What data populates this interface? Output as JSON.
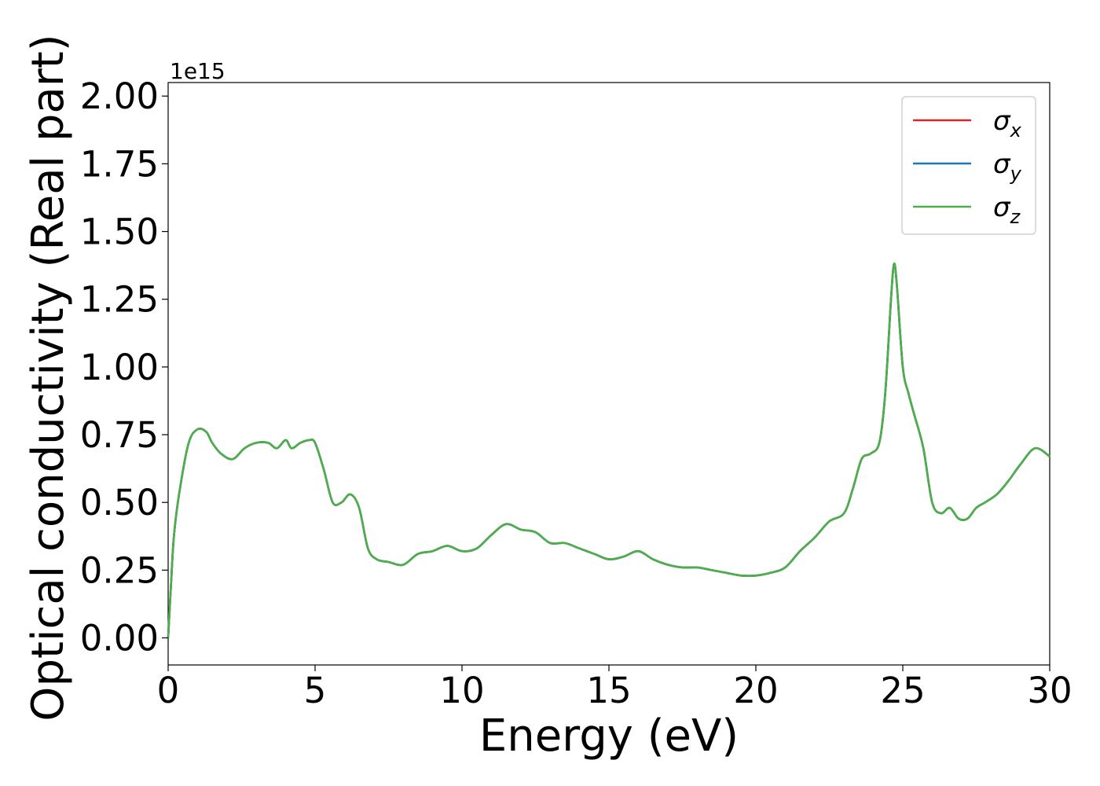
{
  "chart_data": {
    "type": "line",
    "xlabel": "Energy (eV)",
    "ylabel": "Optical conductivity (Real part)",
    "offset_text": "1e15",
    "xlim": [
      0,
      30
    ],
    "ylim": [
      -0.1,
      2.05
    ],
    "y_scale": 1000000000000000.0,
    "x_ticks": [
      0,
      5,
      10,
      15,
      20,
      25,
      30
    ],
    "x_tick_labels": [
      "0",
      "5",
      "10",
      "15",
      "20",
      "25",
      "30"
    ],
    "y_ticks": [
      0.0,
      0.25,
      0.5,
      0.75,
      1.0,
      1.25,
      1.5,
      1.75,
      2.0
    ],
    "y_tick_labels": [
      "0.00",
      "0.25",
      "0.50",
      "0.75",
      "1.00",
      "1.25",
      "1.50",
      "1.75",
      "2.00"
    ],
    "grid": false,
    "legend_position": "top-right",
    "x": [
      0.0,
      0.1,
      0.2,
      0.4,
      0.7,
      1.0,
      1.3,
      1.5,
      1.8,
      2.2,
      2.6,
      3.0,
      3.4,
      3.7,
      4.0,
      4.2,
      4.5,
      4.8,
      5.0,
      5.3,
      5.6,
      5.9,
      6.2,
      6.5,
      6.8,
      7.1,
      7.5,
      8.0,
      8.5,
      9.0,
      9.5,
      10.0,
      10.5,
      11.0,
      11.5,
      12.0,
      12.5,
      13.0,
      13.5,
      14.0,
      14.5,
      15.0,
      15.5,
      16.0,
      16.5,
      17.0,
      17.5,
      18.0,
      18.5,
      19.0,
      19.5,
      20.0,
      20.5,
      21.0,
      21.5,
      22.0,
      22.5,
      23.0,
      23.3,
      23.6,
      23.9,
      24.2,
      24.4,
      24.6,
      24.7,
      24.8,
      25.0,
      25.2,
      25.4,
      25.7,
      26.0,
      26.3,
      26.6,
      26.9,
      27.2,
      27.5,
      27.8,
      28.2,
      28.6,
      29.0,
      29.5,
      30.0
    ],
    "series": [
      {
        "name": "σx",
        "color": "#d62728",
        "values": [
          0.0,
          0.2,
          0.38,
          0.55,
          0.72,
          0.77,
          0.76,
          0.72,
          0.68,
          0.66,
          0.7,
          0.72,
          0.72,
          0.7,
          0.73,
          0.7,
          0.72,
          0.73,
          0.72,
          0.62,
          0.5,
          0.5,
          0.53,
          0.48,
          0.33,
          0.29,
          0.28,
          0.27,
          0.31,
          0.32,
          0.34,
          0.32,
          0.33,
          0.38,
          0.42,
          0.4,
          0.39,
          0.35,
          0.35,
          0.33,
          0.31,
          0.29,
          0.3,
          0.32,
          0.29,
          0.27,
          0.26,
          0.26,
          0.25,
          0.24,
          0.23,
          0.23,
          0.24,
          0.26,
          0.32,
          0.37,
          0.43,
          0.46,
          0.55,
          0.66,
          0.68,
          0.72,
          0.9,
          1.25,
          1.38,
          1.3,
          1.0,
          0.9,
          0.82,
          0.7,
          0.5,
          0.46,
          0.48,
          0.44,
          0.44,
          0.48,
          0.5,
          0.53,
          0.58,
          0.64,
          0.7,
          0.67
        ]
      },
      {
        "name": "σy",
        "color": "#1f77b4",
        "values": [
          0.0,
          0.2,
          0.38,
          0.55,
          0.72,
          0.77,
          0.76,
          0.72,
          0.68,
          0.66,
          0.7,
          0.72,
          0.72,
          0.7,
          0.73,
          0.7,
          0.72,
          0.73,
          0.72,
          0.62,
          0.5,
          0.5,
          0.53,
          0.48,
          0.33,
          0.29,
          0.28,
          0.27,
          0.31,
          0.32,
          0.34,
          0.32,
          0.33,
          0.38,
          0.42,
          0.4,
          0.39,
          0.35,
          0.35,
          0.33,
          0.31,
          0.29,
          0.3,
          0.32,
          0.29,
          0.27,
          0.26,
          0.26,
          0.25,
          0.24,
          0.23,
          0.23,
          0.24,
          0.26,
          0.32,
          0.37,
          0.43,
          0.46,
          0.55,
          0.66,
          0.68,
          0.72,
          0.9,
          1.25,
          1.38,
          1.3,
          1.0,
          0.9,
          0.82,
          0.7,
          0.5,
          0.46,
          0.48,
          0.44,
          0.44,
          0.48,
          0.5,
          0.53,
          0.58,
          0.64,
          0.7,
          0.67
        ]
      },
      {
        "name": "σz",
        "color": "#4daf4a",
        "values": [
          0.0,
          0.2,
          0.38,
          0.55,
          0.72,
          0.77,
          0.76,
          0.72,
          0.68,
          0.66,
          0.7,
          0.72,
          0.72,
          0.7,
          0.73,
          0.7,
          0.72,
          0.73,
          0.72,
          0.62,
          0.5,
          0.5,
          0.53,
          0.48,
          0.33,
          0.29,
          0.28,
          0.27,
          0.31,
          0.32,
          0.34,
          0.32,
          0.33,
          0.38,
          0.42,
          0.4,
          0.39,
          0.35,
          0.35,
          0.33,
          0.31,
          0.29,
          0.3,
          0.32,
          0.29,
          0.27,
          0.26,
          0.26,
          0.25,
          0.24,
          0.23,
          0.23,
          0.24,
          0.26,
          0.32,
          0.37,
          0.43,
          0.46,
          0.55,
          0.66,
          0.68,
          0.72,
          0.9,
          1.25,
          1.38,
          1.3,
          1.0,
          0.9,
          0.82,
          0.7,
          0.5,
          0.46,
          0.48,
          0.44,
          0.44,
          0.48,
          0.5,
          0.53,
          0.58,
          0.64,
          0.7,
          0.67
        ]
      }
    ],
    "legend": [
      {
        "symbol": "σ",
        "subscript": "x",
        "color": "#d62728"
      },
      {
        "symbol": "σ",
        "subscript": "y",
        "color": "#1f77b4"
      },
      {
        "symbol": "σ",
        "subscript": "z",
        "color": "#4daf4a"
      }
    ]
  }
}
